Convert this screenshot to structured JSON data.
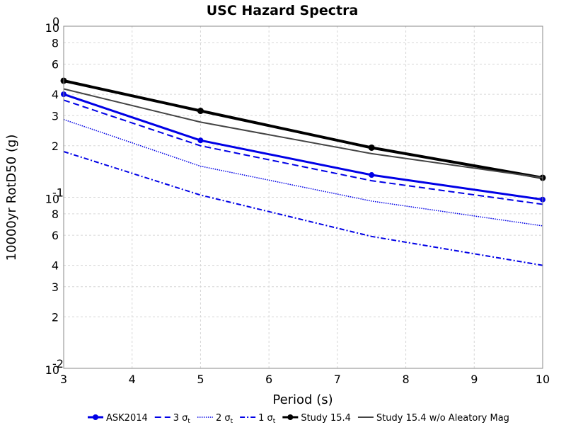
{
  "chart_data": {
    "type": "line",
    "title": "USC Hazard Spectra",
    "xlabel": "Period (s)",
    "ylabel": "10000yr RotD50 (g)",
    "xlim": [
      3,
      10
    ],
    "ylim": [
      0.01,
      1
    ],
    "yscale": "log",
    "grid": true,
    "legend_position": "bottom",
    "x_ticks": [
      "3",
      "4",
      "5",
      "6",
      "7",
      "8",
      "9",
      "10"
    ],
    "y_ticks": [
      {
        "value": 0.01,
        "base": "10",
        "exp": "-2"
      },
      {
        "value": 0.02,
        "label": "2"
      },
      {
        "value": 0.03,
        "label": "3"
      },
      {
        "value": 0.04,
        "label": "4"
      },
      {
        "value": 0.06,
        "label": "6"
      },
      {
        "value": 0.08,
        "label": "8"
      },
      {
        "value": 0.1,
        "base": "10",
        "exp": "-1"
      },
      {
        "value": 0.2,
        "label": "2"
      },
      {
        "value": 0.3,
        "label": "3"
      },
      {
        "value": 0.4,
        "label": "4"
      },
      {
        "value": 0.6,
        "label": "6"
      },
      {
        "value": 0.8,
        "label": "8"
      },
      {
        "value": 1,
        "base": "10",
        "exp": "0"
      }
    ],
    "series": [
      {
        "name": "ASK2014",
        "legend_main": "ASK2014",
        "legend_sub": "",
        "color": "#0000e6",
        "width": 3,
        "dash": "",
        "marker": true,
        "x": [
          3,
          5,
          7.5,
          10
        ],
        "y": [
          0.4,
          0.215,
          0.135,
          0.097
        ]
      },
      {
        "name": "3 σt",
        "legend_main": "3 σ",
        "legend_sub": "t",
        "color": "#0000e6",
        "width": 2,
        "dash": "9,5",
        "marker": false,
        "x": [
          3,
          5,
          7.5,
          10
        ],
        "y": [
          0.37,
          0.2,
          0.125,
          0.091
        ]
      },
      {
        "name": "2 σt",
        "legend_main": "2 σ",
        "legend_sub": "t",
        "color": "#0000e6",
        "width": 1.5,
        "dash": "1.5,1.5",
        "marker": false,
        "x": [
          3,
          5,
          7.5,
          10
        ],
        "y": [
          0.285,
          0.152,
          0.095,
          0.068
        ]
      },
      {
        "name": "1 σt",
        "legend_main": "1 σ",
        "legend_sub": "t",
        "color": "#0000e6",
        "width": 2,
        "dash": "7,3,2,3",
        "marker": false,
        "x": [
          3,
          5,
          7.5,
          10
        ],
        "y": [
          0.185,
          0.103,
          0.059,
          0.04
        ]
      },
      {
        "name": "Study 15.4",
        "legend_main": "Study 15.4",
        "legend_sub": "",
        "color": "#000000",
        "width": 4,
        "dash": "",
        "marker": true,
        "x": [
          3,
          5,
          7.5,
          10
        ],
        "y": [
          0.48,
          0.32,
          0.195,
          0.13
        ]
      },
      {
        "name": "Study 15.4 w/o Aleatory Mag",
        "legend_main": "Study 15.4 w/o Aleatory Mag",
        "legend_sub": "",
        "color": "#444444",
        "width": 2,
        "dash": "",
        "marker": false,
        "x": [
          3,
          5,
          7.5,
          10
        ],
        "y": [
          0.43,
          0.275,
          0.18,
          0.13
        ]
      }
    ]
  }
}
